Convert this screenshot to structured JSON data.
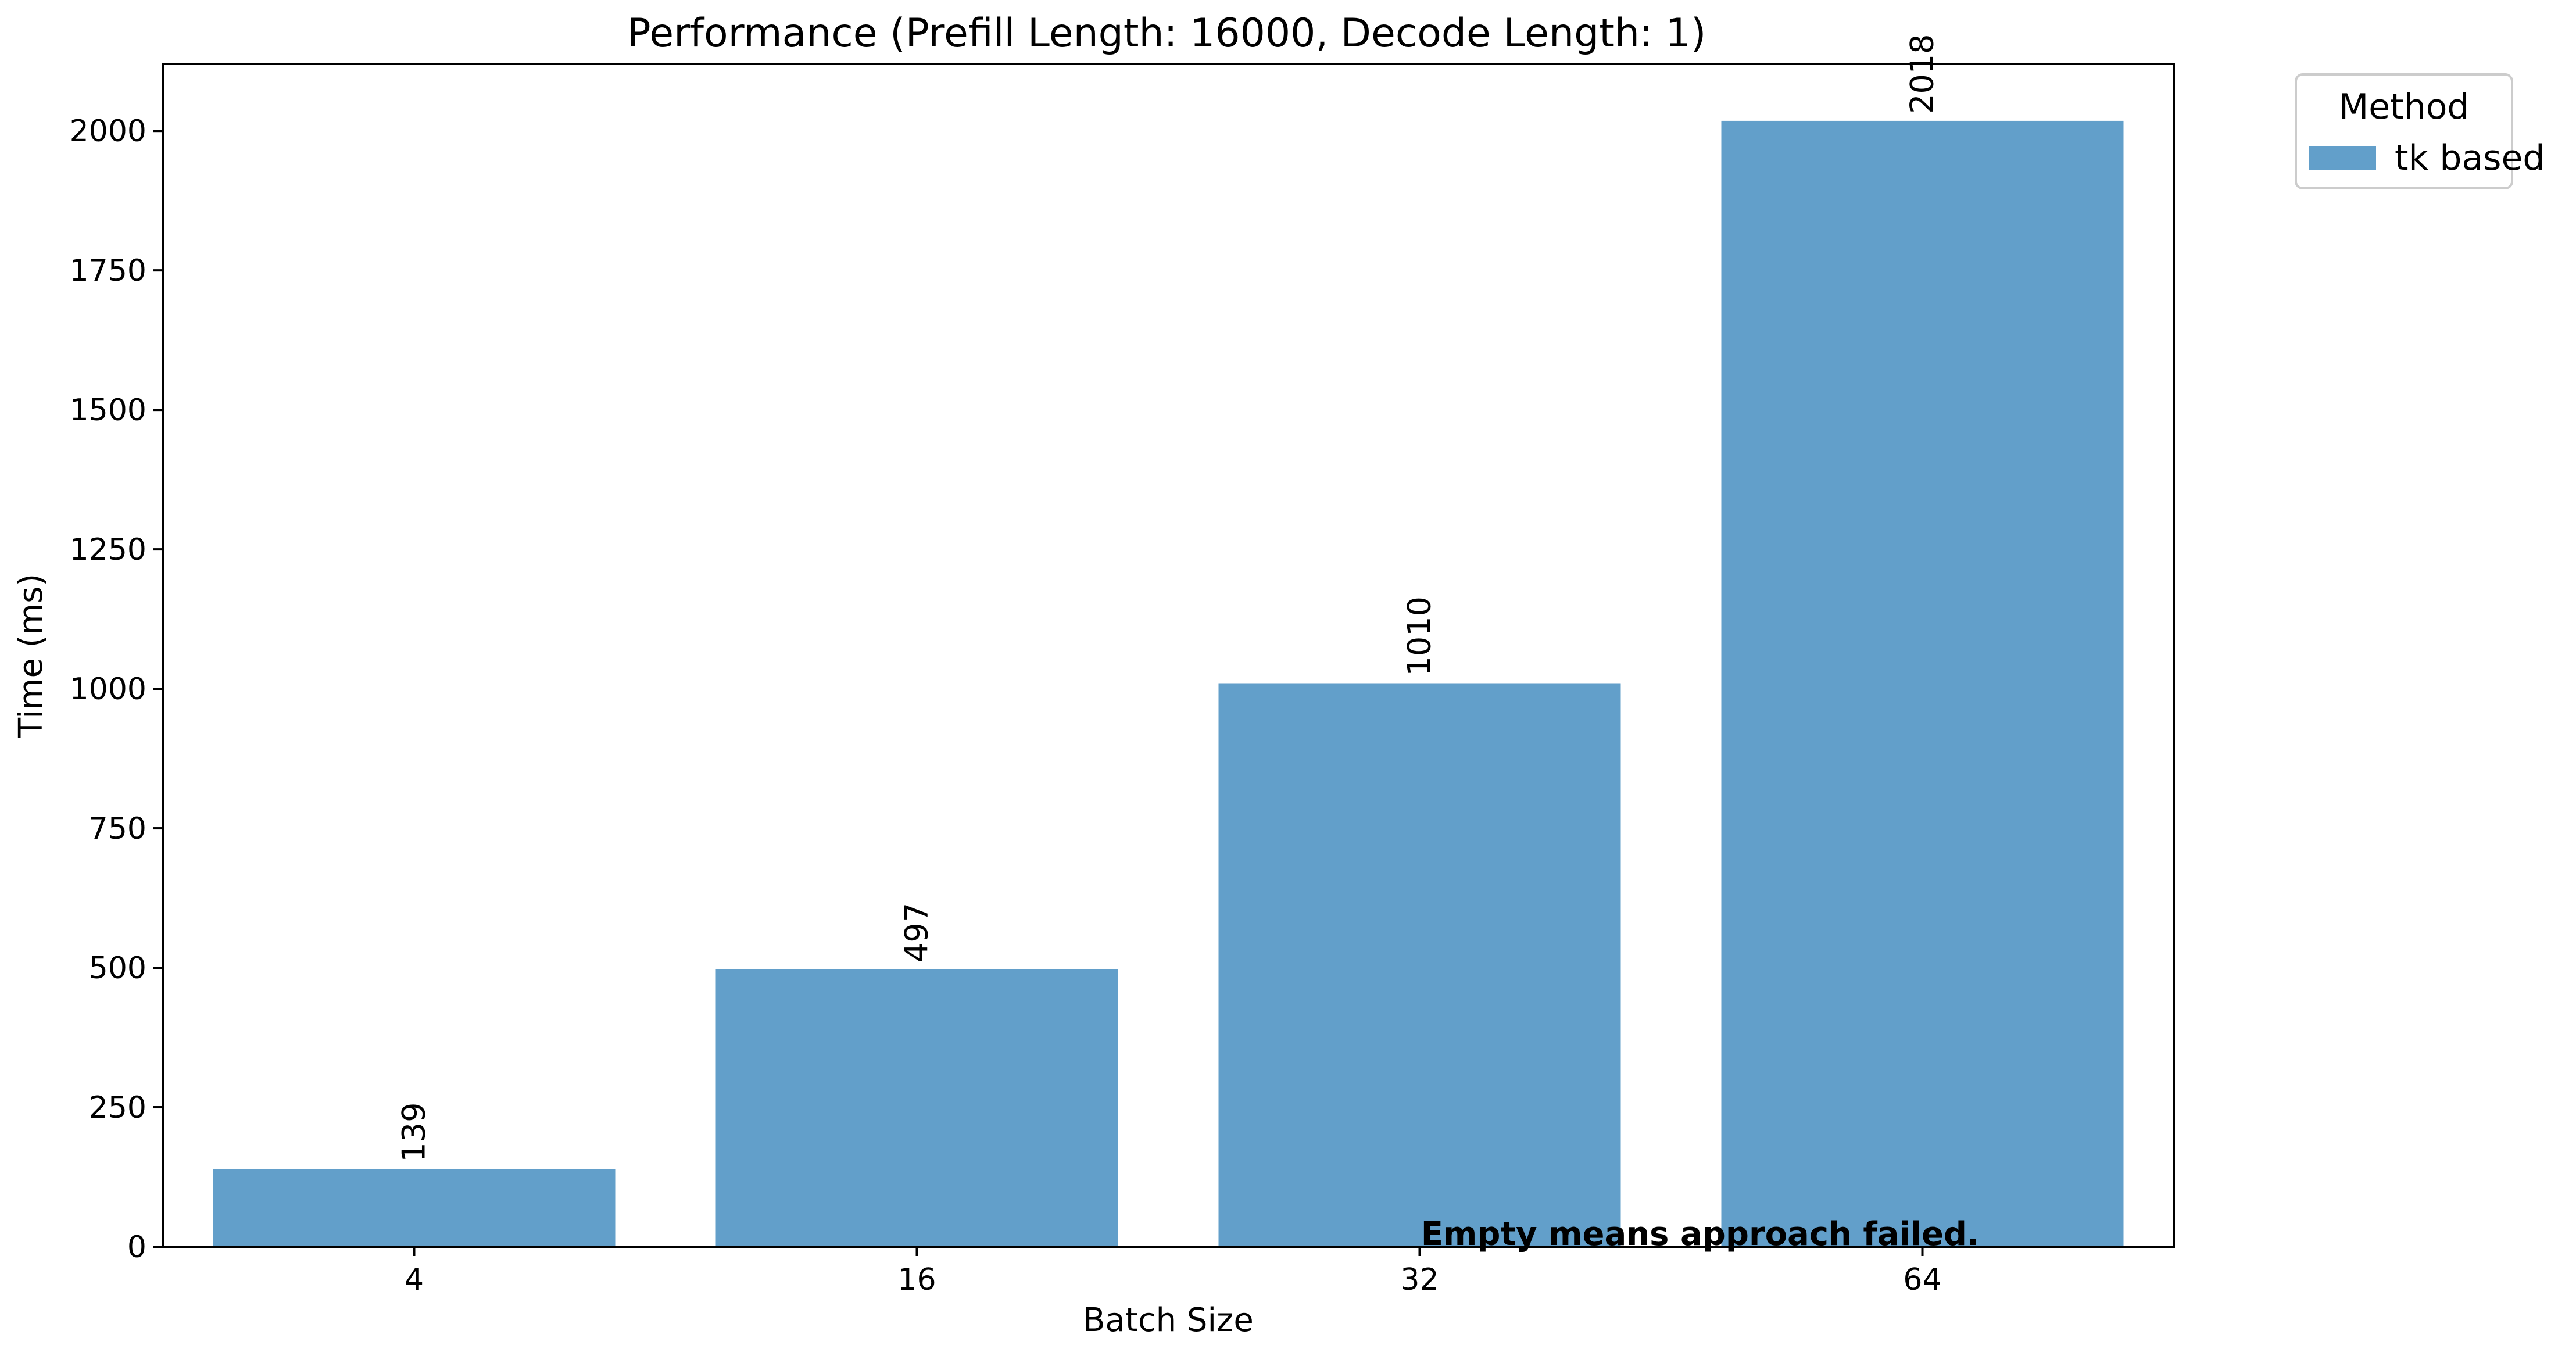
{
  "chart_data": {
    "type": "bar",
    "title": "Performance (Prefill Length: 16000, Decode Length: 1)",
    "xlabel": "Batch Size",
    "ylabel": "Time (ms)",
    "categories": [
      "4",
      "16",
      "32",
      "64"
    ],
    "series": [
      {
        "name": "tk based",
        "values": [
          139,
          497,
          1010,
          2018
        ],
        "color": "#629fca"
      }
    ],
    "value_labels": [
      "139",
      "497",
      "1010",
      "2018"
    ],
    "ylim": [
      0,
      2120
    ],
    "yticks": [
      0,
      250,
      500,
      750,
      1000,
      1250,
      1500,
      1750,
      2000
    ],
    "grid": false,
    "legend": {
      "title": "Method",
      "placement": "outside-top-right"
    },
    "annotation": {
      "text": "Empty means approach failed.",
      "color": "#ee0000"
    }
  }
}
